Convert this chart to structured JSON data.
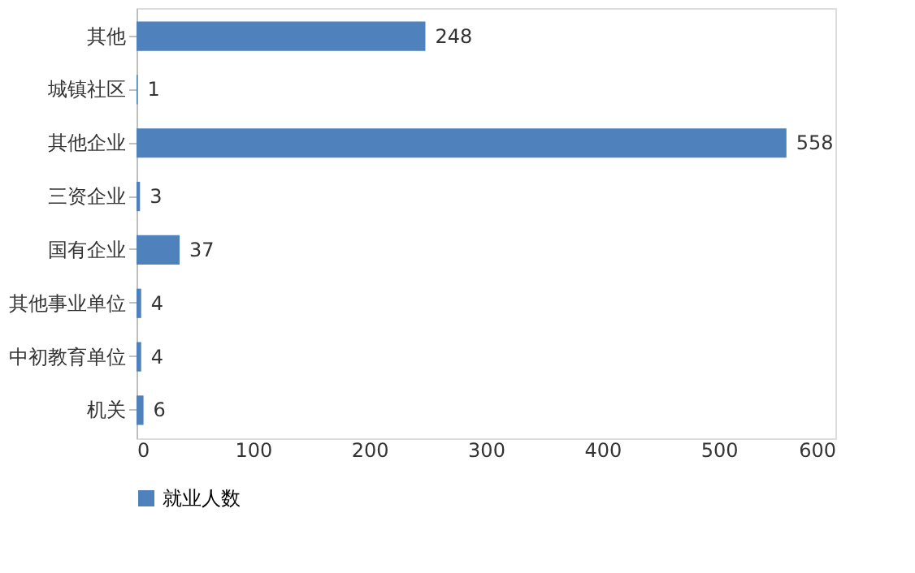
{
  "chart_data": {
    "type": "bar",
    "orientation": "horizontal",
    "categories": [
      "其他",
      "城镇社区",
      "其他企业",
      "三资企业",
      "国有企业",
      "其他事业单位",
      "中初教育单位",
      "机关"
    ],
    "series": [
      {
        "name": "就业人数",
        "color": "#4f81bd",
        "values": [
          248,
          1,
          558,
          3,
          37,
          4,
          4,
          6
        ]
      }
    ],
    "xlim": [
      0,
      600
    ],
    "xticks": [
      0,
      100,
      200,
      300,
      400,
      500,
      600
    ],
    "grid": false,
    "legend": "bottom",
    "data_labels": true
  }
}
